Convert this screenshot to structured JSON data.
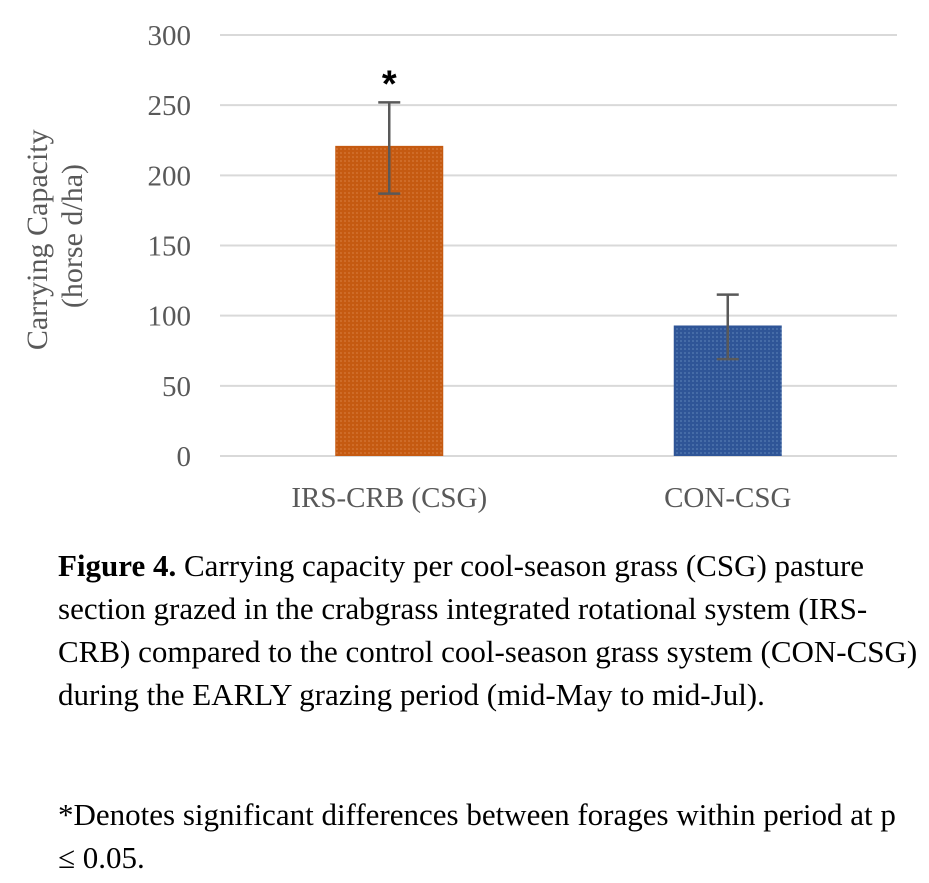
{
  "chart_data": {
    "type": "bar",
    "categories": [
      "IRS-CRB (CSG)",
      "CON-CSG"
    ],
    "values": [
      221,
      93
    ],
    "error_bars": [
      {
        "low": 187,
        "high": 252
      },
      {
        "low": 69,
        "high": 115
      }
    ],
    "annotations": [
      {
        "category": "IRS-CRB (CSG)",
        "text": "*"
      }
    ],
    "colors": [
      "#c55a11",
      "#2f5597"
    ],
    "bar_pattern": "dotted",
    "title": "",
    "xlabel": "",
    "ylabel_lines": [
      "Carrying Capacity",
      "(horse d/ha)"
    ],
    "ylim": [
      0,
      300
    ],
    "yticks": [
      0,
      50,
      100,
      150,
      200,
      250,
      300
    ],
    "grid": true,
    "legend": "none"
  },
  "caption": {
    "label": "Figure 4.",
    "text": " Carrying capacity per cool-season grass (CSG) pasture section grazed in the crabgrass integrated rotational system (IRS-CRB) compared to the control cool-season grass system (CON-CSG) during the EARLY grazing period (mid-May to mid-Jul).",
    "note": "*Denotes significant differences between forages within period at p ≤ 0.05."
  }
}
